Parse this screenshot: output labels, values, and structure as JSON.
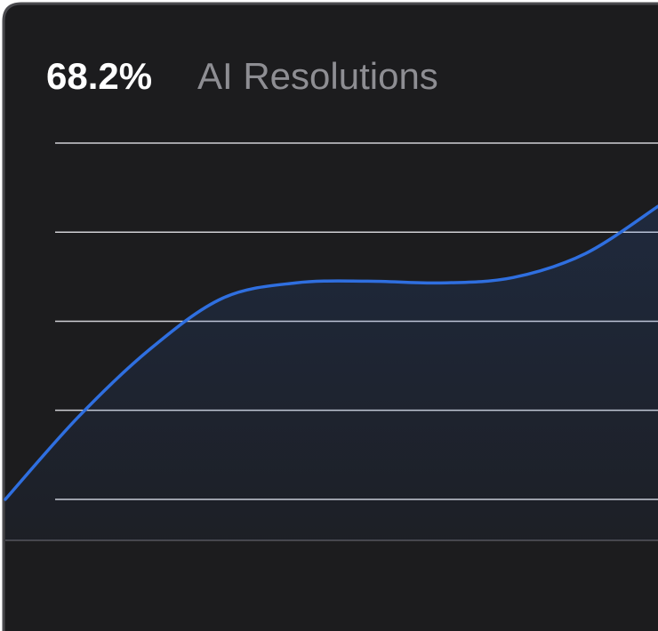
{
  "chart_data": {
    "type": "line",
    "stat": "68.2%",
    "title": "AI Resolutions",
    "categories": [
      null,
      null,
      null,
      null,
      null,
      null,
      null,
      null,
      null,
      null
    ],
    "series": [
      {
        "color": "#2f6fe0",
        "values": [
          10.0,
          19.2,
          26.9,
          32.6,
          34.3,
          34.5,
          34.3,
          34.9,
          37.6,
          42.9
        ]
      }
    ],
    "ylim": [
      5.4,
      50
    ],
    "yticks": [
      10,
      20,
      30,
      40,
      50
    ],
    "grid": true
  }
}
